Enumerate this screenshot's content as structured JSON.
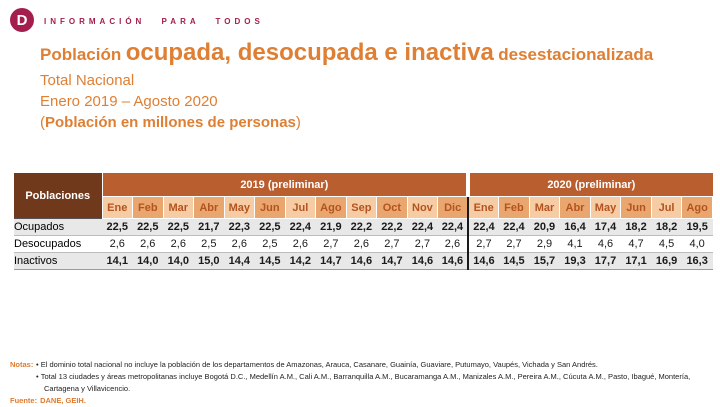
{
  "brand": {
    "logo_letter": "D",
    "tagline": "INFORMACIÓN PARA TODOS",
    "color": "#A41E4D"
  },
  "header": {
    "title_prefix": "Población",
    "title_emphasis": "ocupada, desocupada e inactiva",
    "title_suffix": "desestacionalizada",
    "subtitle_scope": "Total Nacional",
    "subtitle_period": "Enero 2019 – Agosto 2020",
    "units_open": "(",
    "units_text": "Población en millones de personas",
    "units_close": ")",
    "accent_color": "#DE7F33"
  },
  "table": {
    "corner_label": "Poblaciones",
    "colors": {
      "corner_bg": "#70391C",
      "year_band_bg": "#B95E2F",
      "month_light_bg": "#F6CCA5",
      "month_dark_bg": "#E9A76F",
      "month_text": "#B4531F",
      "shaded_row_bg": "#E8E8E8"
    },
    "year_groups": [
      {
        "label": "2019 (preliminar)",
        "months": [
          "Ene",
          "Feb",
          "Mar",
          "Abr",
          "May",
          "Jun",
          "Jul",
          "Ago",
          "Sep",
          "Oct",
          "Nov",
          "Dic"
        ]
      },
      {
        "label": "2020 (preliminar)",
        "months": [
          "Ene",
          "Feb",
          "Mar",
          "Abr",
          "May",
          "Jun",
          "Jul",
          "Ago"
        ]
      }
    ],
    "rows": [
      {
        "label": "Ocupados",
        "bold": true,
        "values_2019": [
          "22,5",
          "22,5",
          "22,5",
          "21,7",
          "22,3",
          "22,5",
          "22,4",
          "21,9",
          "22,2",
          "22,2",
          "22,4",
          "22,4"
        ],
        "values_2020": [
          "22,4",
          "22,4",
          "20,9",
          "16,4",
          "17,4",
          "18,2",
          "18,2",
          "19,5"
        ]
      },
      {
        "label": "Desocupados",
        "bold": false,
        "values_2019": [
          "2,6",
          "2,6",
          "2,6",
          "2,5",
          "2,6",
          "2,5",
          "2,6",
          "2,7",
          "2,6",
          "2,7",
          "2,7",
          "2,6"
        ],
        "values_2020": [
          "2,7",
          "2,7",
          "2,9",
          "4,1",
          "4,6",
          "4,7",
          "4,5",
          "4,0"
        ]
      },
      {
        "label": "Inactivos",
        "bold": true,
        "values_2019": [
          "14,1",
          "14,0",
          "14,0",
          "15,0",
          "14,4",
          "14,5",
          "14,2",
          "14,7",
          "14,6",
          "14,7",
          "14,6",
          "14,6"
        ],
        "values_2020": [
          "14,6",
          "14,5",
          "15,7",
          "19,3",
          "17,7",
          "17,1",
          "16,9",
          "16,3"
        ]
      }
    ]
  },
  "footer": {
    "notas_label": "Notas:",
    "notes": [
      "El dominio total nacional no incluye la población de los departamentos de Amazonas, Arauca, Casanare, Guainía, Guaviare, Putumayo, Vaupés, Vichada y San Andrés.",
      "Total 13 ciudades y áreas metropolitanas incluye Bogotá D.C., Medellín A.M., Cali A.M., Barranquilla A.M., Bucaramanga A.M., Manizales A.M., Pereira A.M., Cúcuta A.M., Pasto, Ibagué, Montería, Cartagena y Villavicencio.",
      ""
    ],
    "fuente_label": "Fuente:",
    "fuente_value": "DANE, GEIH."
  }
}
